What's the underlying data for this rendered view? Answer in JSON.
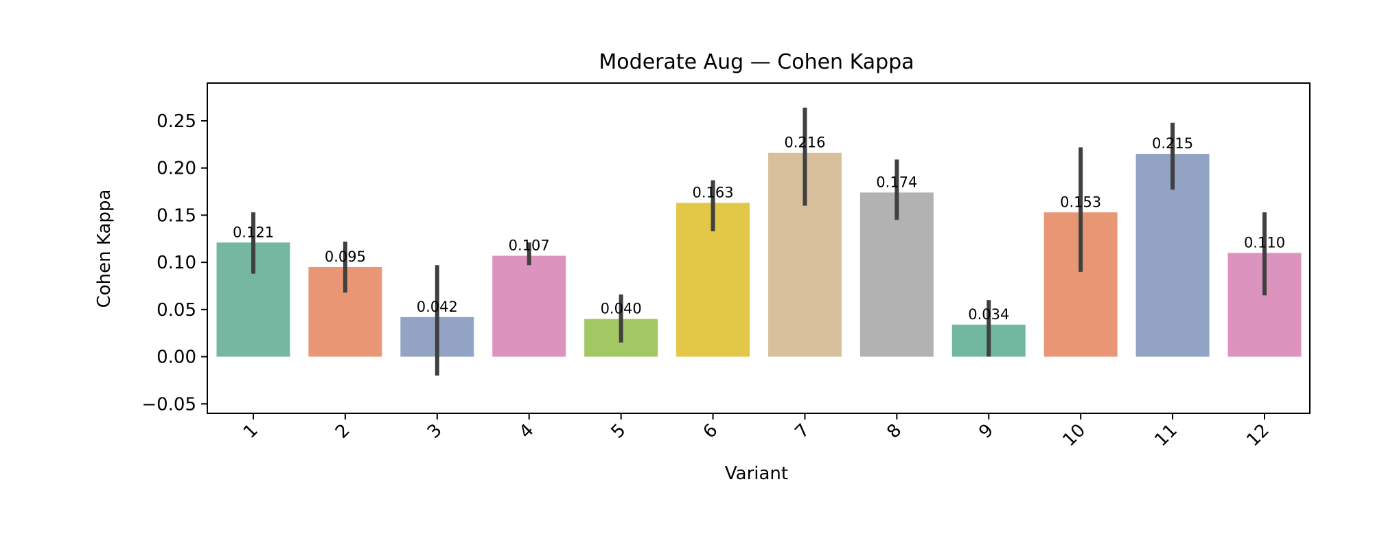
{
  "chart_data": {
    "type": "bar",
    "title": "Moderate Aug — Cohen Kappa",
    "xlabel": "Variant",
    "ylabel": "Cohen Kappa",
    "categories": [
      "1",
      "2",
      "3",
      "4",
      "5",
      "6",
      "7",
      "8",
      "9",
      "10",
      "11",
      "12"
    ],
    "values": [
      0.121,
      0.095,
      0.042,
      0.107,
      0.04,
      0.163,
      0.216,
      0.174,
      0.034,
      0.153,
      0.215,
      0.11
    ],
    "value_labels": [
      "0.121",
      "0.095",
      "0.042",
      "0.107",
      "0.040",
      "0.163",
      "0.216",
      "0.174",
      "0.034",
      "0.153",
      "0.215",
      "0.110"
    ],
    "error_low": [
      0.088,
      0.068,
      -0.02,
      0.097,
      0.015,
      0.133,
      0.16,
      0.145,
      0.0,
      0.09,
      0.177,
      0.065
    ],
    "error_high": [
      0.153,
      0.122,
      0.097,
      0.121,
      0.066,
      0.187,
      0.264,
      0.209,
      0.06,
      0.222,
      0.248,
      0.153
    ],
    "ylim": [
      -0.06,
      0.29
    ],
    "yticks": [
      -0.05,
      0.0,
      0.05,
      0.1,
      0.15,
      0.2,
      0.25
    ],
    "ytick_labels": [
      "−0.05",
      "0.00",
      "0.05",
      "0.10",
      "0.15",
      "0.20",
      "0.25"
    ],
    "colors": [
      "#75b7a0",
      "#e99674",
      "#93a3c4",
      "#dc94bf",
      "#a2c864",
      "#e3c847",
      "#d9c09c",
      "#b2b2b2",
      "#72b7a0",
      "#e99674",
      "#93a3c4",
      "#dc94bf"
    ],
    "error_color": "#404040",
    "grid": false,
    "legend": "none"
  }
}
